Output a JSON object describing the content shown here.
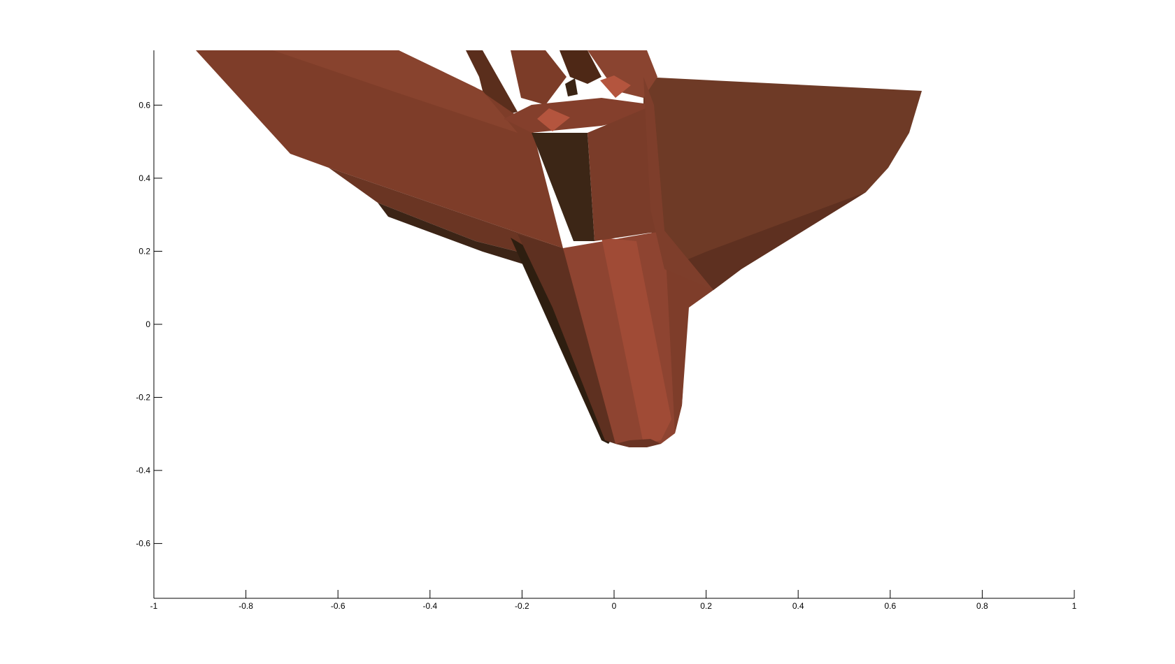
{
  "chart_data": {
    "type": "3d-surface",
    "title": "",
    "xlabel": "",
    "ylabel": "",
    "xlim": [
      -1,
      1
    ],
    "ylim": [
      -0.75,
      0.75
    ],
    "x_ticks": [
      -1,
      -0.8,
      -0.6,
      -0.4,
      -0.2,
      0,
      0.2,
      0.4,
      0.6,
      0.8,
      1
    ],
    "x_tick_labels": [
      "-1",
      "-0.8",
      "-0.6",
      "-0.4",
      "-0.2",
      "0",
      "0.2",
      "0.4",
      "0.6",
      "0.8",
      "1"
    ],
    "y_ticks": [
      -0.6,
      -0.4,
      -0.2,
      0,
      0.2,
      0.4,
      0.6
    ],
    "y_tick_labels": [
      "-0.6",
      "-0.4",
      "-0.2",
      "0",
      "0.2",
      "0.4",
      "0.6"
    ],
    "grid": false,
    "box": false,
    "surface_color": "#7a3b28",
    "surface_highlight": "#9c4a35",
    "surface_shadow": "#3a2414",
    "axis_color": "#000000",
    "background": "#ffffff"
  }
}
